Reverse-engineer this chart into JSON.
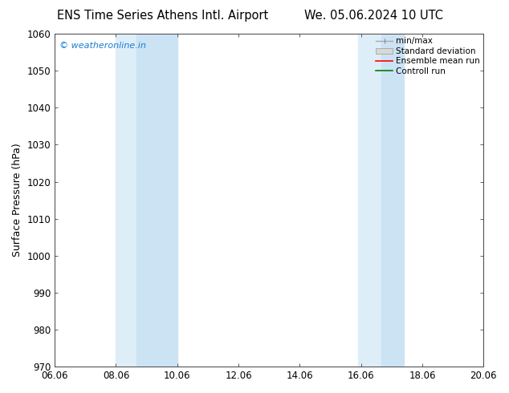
{
  "title_left": "ENS Time Series Athens Intl. Airport",
  "title_right": "We. 05.06.2024 10 UTC",
  "ylabel": "Surface Pressure (hPa)",
  "ylim": [
    970,
    1060
  ],
  "yticks": [
    970,
    980,
    990,
    1000,
    1010,
    1020,
    1030,
    1040,
    1050,
    1060
  ],
  "xtick_labels": [
    "06.06",
    "08.06",
    "10.06",
    "12.06",
    "14.06",
    "16.06",
    "18.06",
    "20.06"
  ],
  "xtick_positions": [
    0,
    2,
    4,
    6,
    8,
    10,
    12,
    14
  ],
  "xlim": [
    0,
    14
  ],
  "band1_a": [
    2.0,
    2.67
  ],
  "band1_b": [
    2.67,
    4.0
  ],
  "band2_a": [
    9.9,
    10.67
  ],
  "band2_b": [
    10.67,
    11.4
  ],
  "band_color_light": "#ddeef9",
  "band_color_mid": "#cce3f4",
  "watermark": "© weatheronline.in",
  "watermark_color": "#1a7ad4",
  "background_color": "#ffffff",
  "title_fontsize": 10.5,
  "axis_fontsize": 9,
  "tick_fontsize": 8.5
}
